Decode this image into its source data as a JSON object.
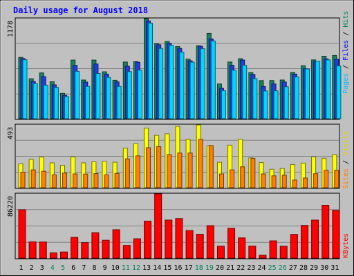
{
  "chart_data": {
    "type": "bar",
    "title": "Daily usage for August 2018",
    "days": [
      "1",
      "2",
      "3",
      "4",
      "5",
      "6",
      "7",
      "8",
      "9",
      "10",
      "11",
      "12",
      "13",
      "14",
      "15",
      "16",
      "17",
      "18",
      "19",
      "20",
      "21",
      "22",
      "23",
      "24",
      "25",
      "26",
      "27",
      "28",
      "29",
      "30",
      "31"
    ],
    "weekend_days": [
      "4",
      "5",
      "11",
      "12",
      "18",
      "19",
      "25",
      "26"
    ],
    "panels": {
      "hits_files_pages": {
        "max_label": "1178",
        "ylim": [
          0,
          1178
        ],
        "series": [
          {
            "name": "Hits",
            "color": "#1a8060",
            "values": [
              722,
              470,
              539,
              435,
              298,
              690,
              455,
              690,
              552,
              452,
              667,
              672,
              1178,
              883,
              909,
              849,
              701,
              859,
              1004,
              409,
              667,
              706,
              543,
              448,
              449,
              455,
              544,
              624,
              692,
              735,
              744
            ]
          },
          {
            "name": "Files",
            "color": "#1d3fdb",
            "values": [
              708,
              438,
              495,
              398,
              275,
              628,
              431,
              644,
              525,
              433,
              619,
              665,
              1151,
              870,
              888,
              827,
              681,
              852,
              939,
              358,
              628,
              690,
              521,
              379,
              409,
              432,
              525,
              588,
              673,
              704,
              700
            ]
          },
          {
            "name": "Pages",
            "color": "#00d4ff",
            "values": [
              694,
              412,
              395,
              368,
              260,
              557,
              380,
              532,
              485,
              380,
              554,
              572,
              1125,
              827,
              863,
              783,
              665,
              824,
              915,
              330,
              571,
              628,
              471,
              326,
              328,
              375,
              491,
              585,
              675,
              692,
              621
            ]
          }
        ]
      },
      "sites_visits": {
        "max_label": "493",
        "ylim": [
          0,
          493
        ],
        "series": [
          {
            "name": "Visits",
            "color": "#ffff00",
            "values": [
              188,
              222,
              240,
              195,
              175,
              241,
              195,
              203,
              207,
              200,
              310,
              346,
              467,
              411,
              423,
              482,
              380,
              493,
              330,
              200,
              334,
              380,
              234,
              197,
              145,
              151,
              182,
              193,
              242,
              231,
              259
            ]
          },
          {
            "name": "Sites",
            "color": "#ff8000",
            "values": [
              122,
              140,
              129,
              101,
              115,
              108,
              107,
              111,
              101,
              112,
              226,
              250,
              314,
              323,
              260,
              272,
              272,
              380,
              331,
              108,
              140,
              164,
              230,
              108,
              93,
              98,
              60,
              76,
              110,
              137,
              138
            ]
          }
        ]
      },
      "kbytes": {
        "max_label": "86220",
        "ylim": [
          0,
          86220
        ],
        "series": [
          {
            "name": "KBytes",
            "color": "#ff0000",
            "values": [
              64934,
              21795,
              21584,
              7023,
              8166,
              27868,
              20700,
              34063,
              23942,
              38041,
              16955,
              25892,
              49637,
              86220,
              51026,
              53069,
              37017,
              31906,
              43564,
              16052,
              39981,
              27127,
              16107,
              3800,
              23130,
              15979,
              31787,
              43838,
              51028,
              70859,
              64022
            ]
          }
        ]
      }
    },
    "legend_right": [
      {
        "text": "Hits",
        "color": "#00805c"
      },
      {
        "text": "Files",
        "color": "#0000ff"
      },
      {
        "text": "Pages",
        "color": "#00c0ff"
      },
      {
        "text": "Visits",
        "color": "#e0d000"
      },
      {
        "text": "Sites",
        "color": "#ff8000"
      },
      {
        "text": "KBytes",
        "color": "#ff0000"
      }
    ],
    "colors": {
      "background": "#c0c0c0",
      "plot": "#c0c0c0",
      "title": "#0000ff",
      "weekday_label": "#000000",
      "weekend_label": "#00805c"
    }
  }
}
